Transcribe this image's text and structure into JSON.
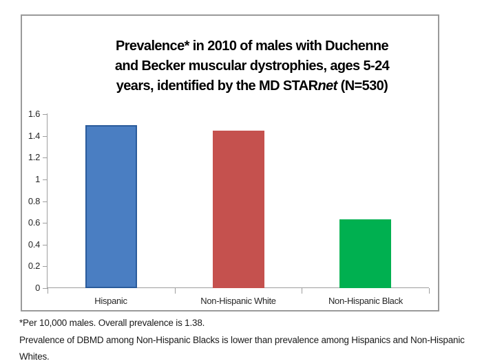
{
  "chart_data": {
    "type": "bar",
    "title_lines": [
      [
        {
          "t": "Prevalence* in 2010 of males with Duchenne"
        }
      ],
      [
        {
          "t": "and Becker muscular dystrophies, ages 5-24"
        }
      ],
      [
        {
          "t": "years, identified by the MD STAR"
        },
        {
          "t": "net",
          "italic": true
        },
        {
          "t": " (N=530)"
        }
      ]
    ],
    "categories": [
      "Hispanic",
      "Non-Hispanic White",
      "Non-Hispanic Black"
    ],
    "values": [
      1.5,
      1.45,
      0.63
    ],
    "bar_fill_colors": [
      "#4a7ec2",
      "#c5514e",
      "#00b050"
    ],
    "bar_border_colors": [
      "#2a5b9b",
      "",
      ""
    ],
    "ylim": [
      0,
      1.6
    ],
    "ytick_labels": [
      "0",
      "0.2",
      "0.4",
      "0.6",
      "0.8",
      "1",
      "1.2",
      "1.4",
      "1.6"
    ],
    "grid": false,
    "legend": "none",
    "xlabel": "",
    "ylabel": "",
    "footnote_lines": [
      "*Per 10,000 males. Overall prevalence is 1.38.",
      "Prevalence of DBMD among Non-Hispanic Blacks is lower than prevalence among Hispanics and Non-Hispanic",
      "Whites."
    ]
  },
  "colors": {
    "background": "#ffffff",
    "frame_border": "#999999",
    "axis": "#9e9e9e",
    "tick_label_text": "#262626",
    "title_text": "#000000",
    "footnote_text": "#1a1a1a",
    "bar_blue": "#4a7ec2",
    "bar_blue_border": "#2a5b9b",
    "bar_red": "#c5514e",
    "bar_green": "#00b050"
  }
}
